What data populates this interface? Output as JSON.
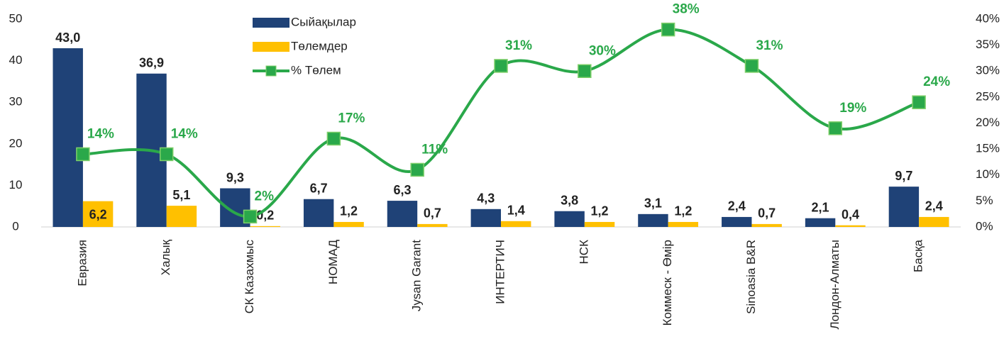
{
  "chart_data": {
    "type": "bar",
    "categories": [
      "Евразия",
      "Халық",
      "СК Казахмыс",
      "НОМАД",
      "Jysan Garant",
      "ИНТЕРТИЧ",
      "НСК",
      "Коммеск - Өмір",
      "Sinoasia B&R",
      "Лондон-Алматы",
      "Басқа"
    ],
    "series": [
      {
        "name": "Сыйақылар",
        "color": "#1f4277",
        "type": "bar",
        "values": [
          43.0,
          36.9,
          9.3,
          6.7,
          6.3,
          4.3,
          3.8,
          3.1,
          2.4,
          2.1,
          9.7
        ],
        "value_labels": [
          "43,0",
          "36,9",
          "9,3",
          "6,7",
          "6,3",
          "4,3",
          "3,8",
          "3,1",
          "2,4",
          "2,1",
          "9,7"
        ]
      },
      {
        "name": "Төлемдер",
        "color": "#ffc000",
        "type": "bar",
        "values": [
          6.2,
          5.1,
          0.2,
          1.2,
          0.7,
          1.4,
          1.2,
          1.2,
          0.7,
          0.4,
          2.4
        ],
        "value_labels": [
          "6,2",
          "5,1",
          "0,2",
          "1,2",
          "0,7",
          "1,4",
          "1,2",
          "1,2",
          "0,7",
          "0,4",
          "2,4"
        ]
      },
      {
        "name": "% Төлем",
        "color": "#2aa84a",
        "type": "line",
        "axis": "y2",
        "values": [
          14,
          14,
          2,
          17,
          11,
          31,
          30,
          38,
          31,
          19,
          24
        ],
        "value_labels": [
          "14%",
          "14%",
          "2%",
          "17%",
          "11%",
          "31%",
          "30%",
          "38%",
          "31%",
          "19%",
          "24%"
        ]
      }
    ],
    "ylim": [
      0,
      50
    ],
    "yticks": [
      0,
      10,
      20,
      30,
      40,
      50
    ],
    "y2lim": [
      0,
      40
    ],
    "y2ticks": [
      {
        "value": 0,
        "label": "0%"
      },
      {
        "value": 5,
        "label": "5%"
      },
      {
        "value": 10,
        "label": "10%"
      },
      {
        "value": 15,
        "label": "15%"
      },
      {
        "value": 20,
        "label": "20%"
      },
      {
        "value": 25,
        "label": "25%"
      },
      {
        "value": 30,
        "label": "30%"
      },
      {
        "value": 35,
        "label": "35%"
      },
      {
        "value": 40,
        "label": "40%"
      }
    ]
  }
}
